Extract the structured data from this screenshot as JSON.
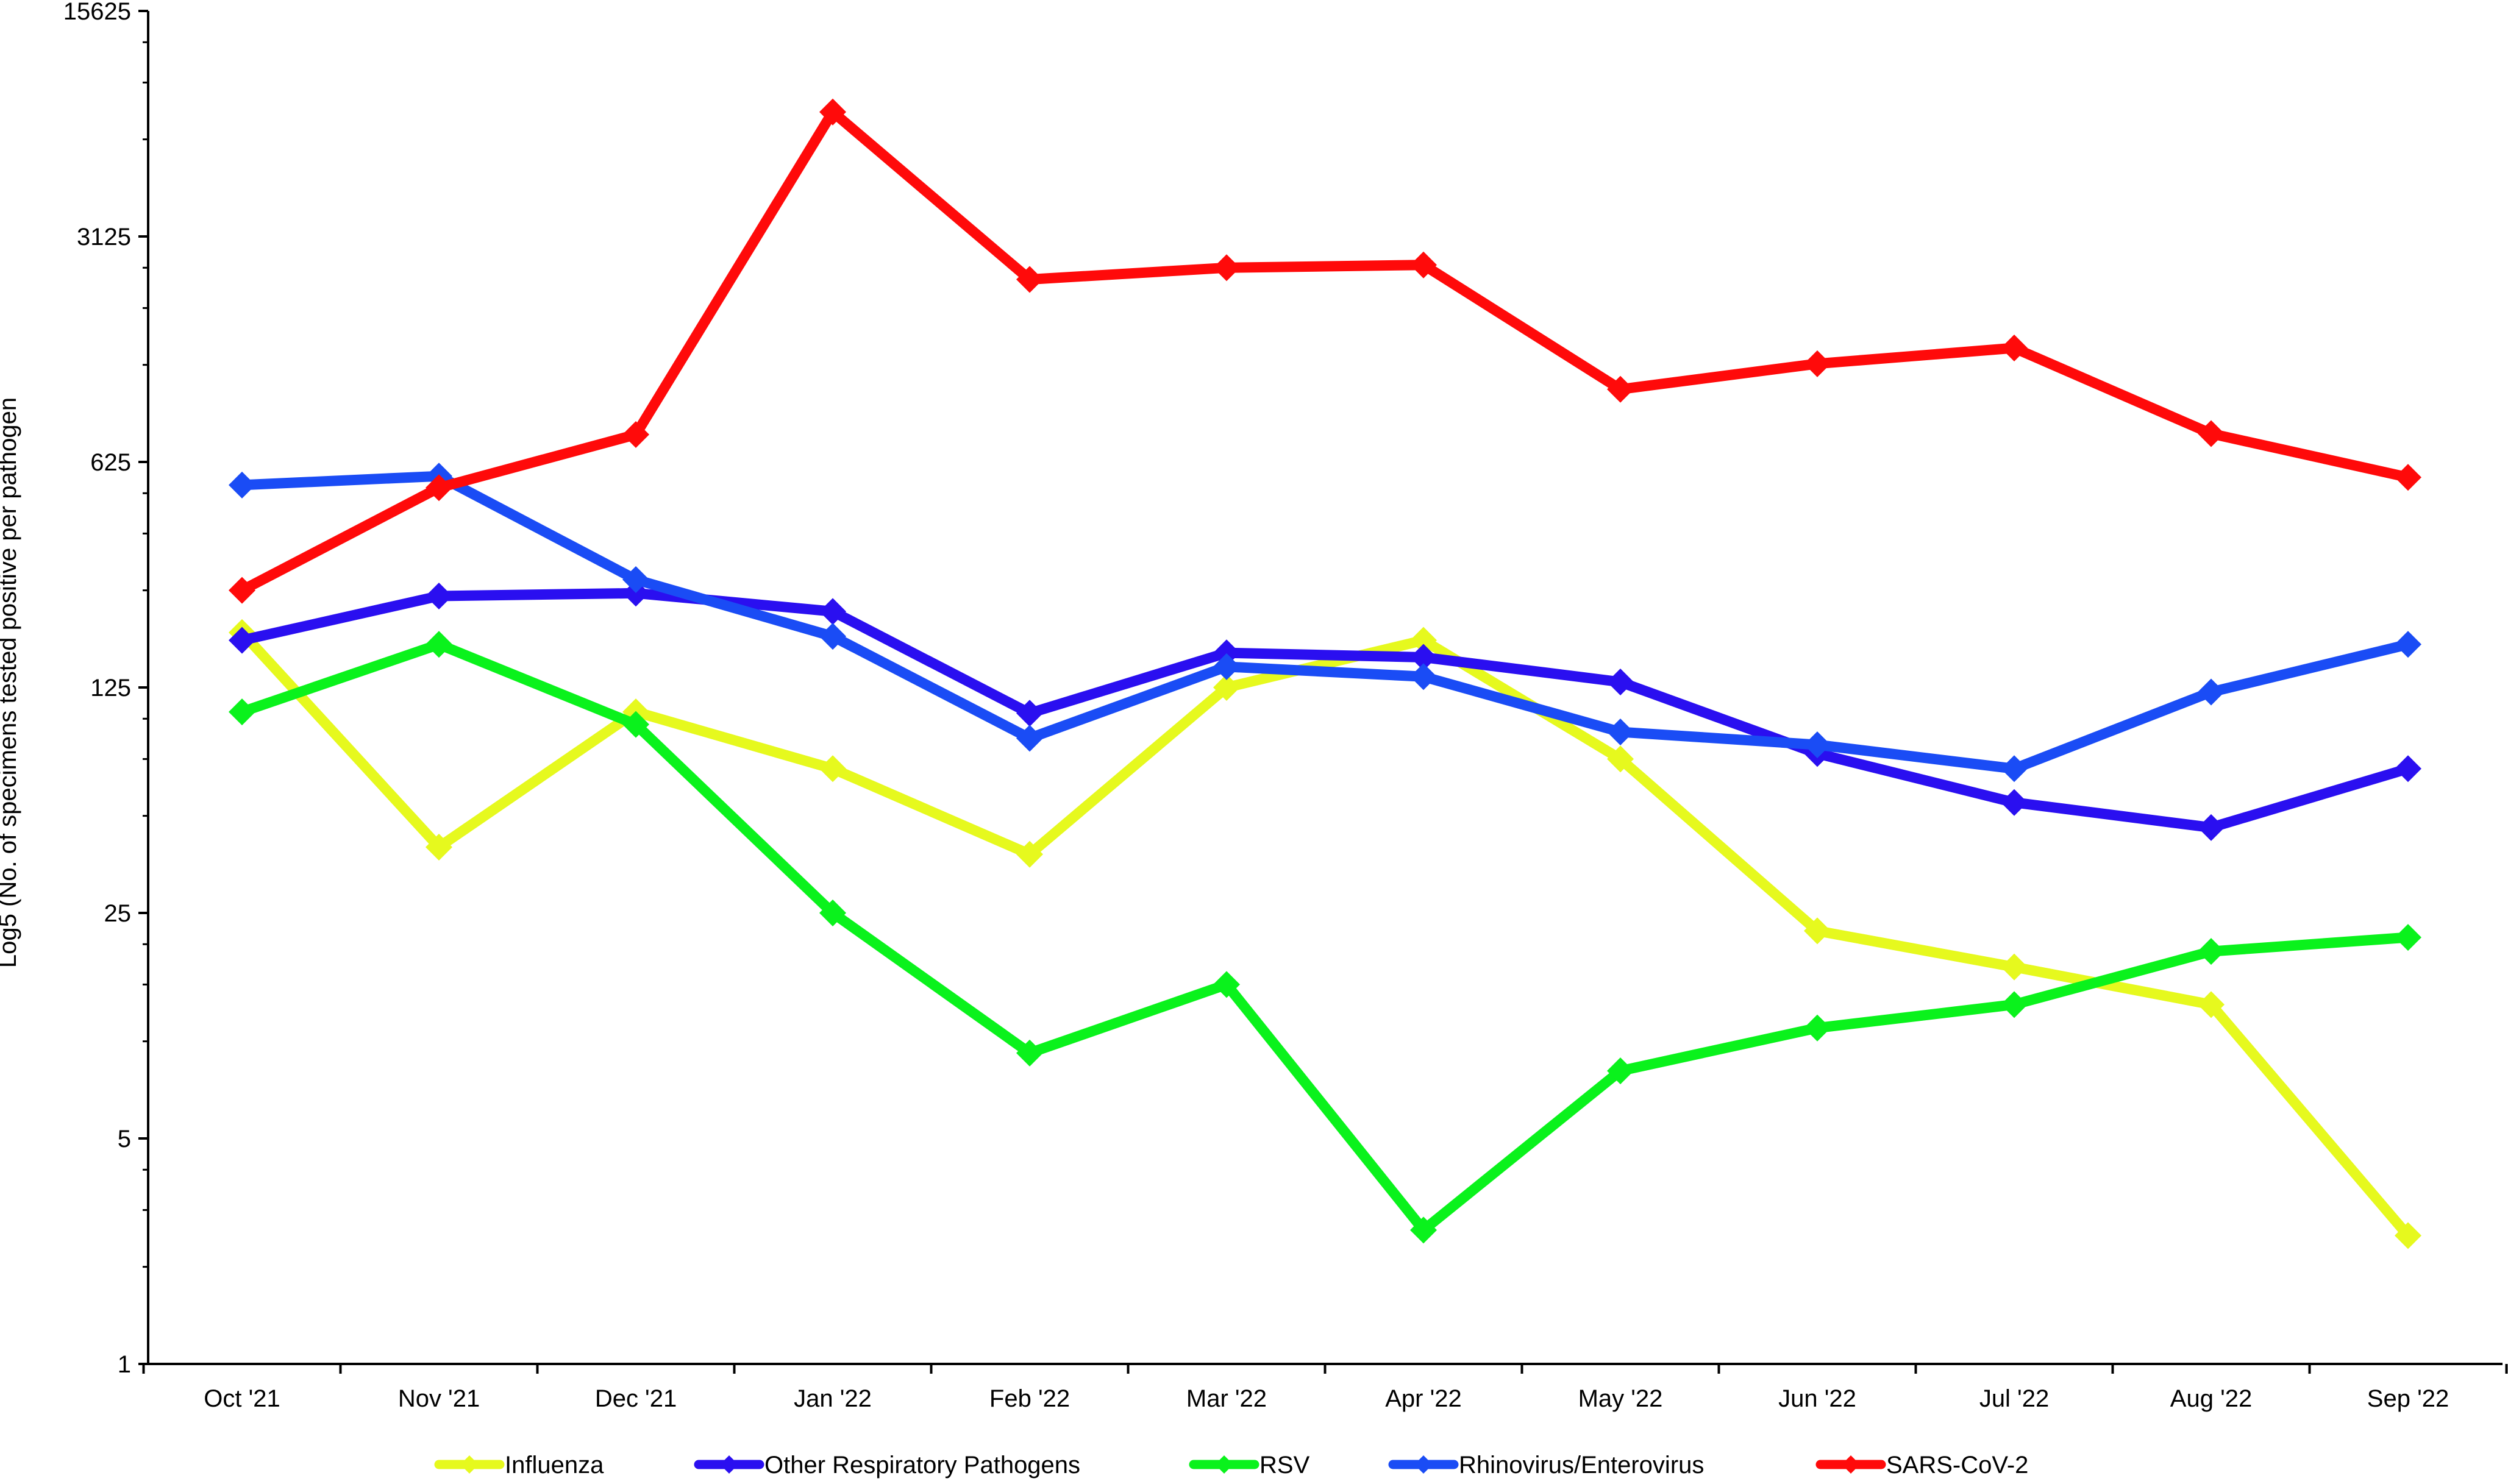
{
  "chart_data": {
    "type": "line",
    "title": "",
    "xlabel": "",
    "ylabel": "Log5 (No. of specimens tested positive per pathogen",
    "y_scale": "log5",
    "ylim": [
      1,
      15625
    ],
    "y_ticks": [
      "1",
      "5",
      "25",
      "125",
      "625",
      "3125",
      "15625"
    ],
    "categories": [
      "Oct '21",
      "Nov '21",
      "Dec '21",
      "Jan '22",
      "Feb '22",
      "Mar '22",
      "Apr '22",
      "May '22",
      "Jun '22",
      "Jul '22",
      "Aug '22",
      "Sep '22"
    ],
    "legend_position": "bottom",
    "series": [
      {
        "name": "Influenza",
        "color": "#e6f91e",
        "values": [
          185,
          40,
          105,
          70,
          38,
          125,
          175,
          75,
          22,
          17,
          13,
          2.5
        ]
      },
      {
        "name": "Other Respiratory Pathogens",
        "color": "#2a0ff0",
        "values": [
          175,
          240,
          245,
          215,
          104,
          160,
          155,
          130,
          78,
          55,
          46,
          70
        ]
      },
      {
        "name": "RSV",
        "color": "#0af21c",
        "values": [
          105,
          170,
          96,
          25,
          9.2,
          15,
          2.6,
          8.1,
          11,
          13,
          19,
          21
        ]
      },
      {
        "name": "Rhinovirus/Enterovirus",
        "color": "#1a4cf5",
        "values": [
          530,
          565,
          270,
          180,
          87,
          145,
          135,
          91,
          83,
          70,
          121,
          170
        ]
      },
      {
        "name": "SARS-CoV-2",
        "color": "#ff0a0a",
        "values": [
          250,
          520,
          760,
          7600,
          2300,
          2500,
          2550,
          1050,
          1260,
          1410,
          765,
          560
        ]
      }
    ]
  }
}
